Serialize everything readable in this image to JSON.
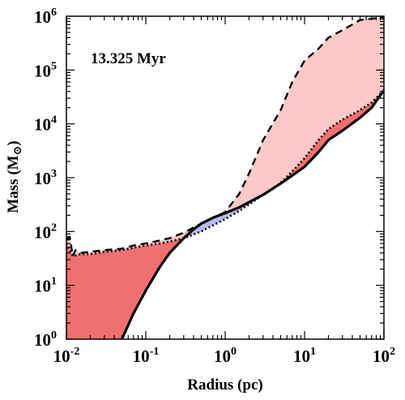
{
  "chart_data": {
    "type": "line",
    "annotation": "13.325 Myr",
    "xlabel": "Radius (pc)",
    "ylabel": "Mass (M",
    "ylabel_symbol": "⊙",
    "ylabel_close": ")",
    "x_scale": "log",
    "y_scale": "log",
    "xlim": [
      0.01,
      100
    ],
    "ylim": [
      1,
      1000000
    ],
    "x_ticks": [
      {
        "base": "10",
        "exp": "-2",
        "value": 0.01
      },
      {
        "base": "10",
        "exp": "-1",
        "value": 0.1
      },
      {
        "base": "10",
        "exp": "0",
        "value": 1
      },
      {
        "base": "10",
        "exp": "1",
        "value": 10
      },
      {
        "base": "10",
        "exp": "2",
        "value": 100
      }
    ],
    "y_ticks": [
      {
        "base": "10",
        "exp": "0",
        "value": 1
      },
      {
        "base": "10",
        "exp": "1",
        "value": 10
      },
      {
        "base": "10",
        "exp": "2",
        "value": 100
      },
      {
        "base": "10",
        "exp": "3",
        "value": 1000
      },
      {
        "base": "10",
        "exp": "4",
        "value": 10000
      },
      {
        "base": "10",
        "exp": "5",
        "value": 100000
      },
      {
        "base": "10",
        "exp": "6",
        "value": 1000000
      }
    ],
    "colors": {
      "fill_red": "#f07070",
      "fill_pink": "#fcc8c8",
      "fill_blue": "#b8b8ec",
      "line": "#000000"
    },
    "series": [
      {
        "style": "solid",
        "x": [
          0.05,
          0.07,
          0.1,
          0.15,
          0.2,
          0.3,
          0.4,
          0.5,
          0.7,
          1.0,
          1.5,
          2.0,
          3.0,
          4.0,
          5.0,
          7.0,
          10,
          15,
          20,
          30,
          50,
          70,
          100
        ],
        "y": [
          1,
          3,
          8,
          22,
          40,
          75,
          110,
          140,
          180,
          220,
          280,
          350,
          480,
          630,
          780,
          1100,
          1600,
          3000,
          5000,
          7500,
          13000,
          20000,
          42000
        ]
      },
      {
        "style": "dotted",
        "x": [
          0.01,
          0.012,
          0.015,
          0.02,
          0.03,
          0.05,
          0.07,
          0.1,
          0.15,
          0.2,
          0.3,
          0.5,
          0.7,
          1.0,
          1.5,
          2.0,
          3.0,
          5.0,
          7.0,
          10,
          15,
          20,
          30,
          50,
          70,
          100
        ],
        "y": [
          60,
          35,
          38,
          38,
          42,
          45,
          50,
          55,
          60,
          65,
          75,
          100,
          130,
          170,
          240,
          320,
          480,
          800,
          1300,
          2300,
          5000,
          8000,
          12000,
          18000,
          25000,
          42000
        ]
      },
      {
        "style": "dashed",
        "x": [
          0.01,
          0.011,
          0.012,
          0.013,
          0.015,
          0.02,
          0.03,
          0.05,
          0.07,
          0.1,
          0.15,
          0.2,
          0.3,
          0.5,
          0.7,
          1.0,
          1.5,
          2.0,
          3.0,
          5.0,
          7.0,
          10,
          15,
          20,
          30,
          50,
          70,
          100
        ],
        "y": [
          70,
          80,
          35,
          45,
          40,
          42,
          45,
          48,
          55,
          60,
          68,
          75,
          95,
          140,
          180,
          230,
          500,
          1200,
          5000,
          18000,
          60000,
          150000,
          250000,
          400000,
          550000,
          850000,
          900000,
          950000
        ]
      }
    ]
  }
}
